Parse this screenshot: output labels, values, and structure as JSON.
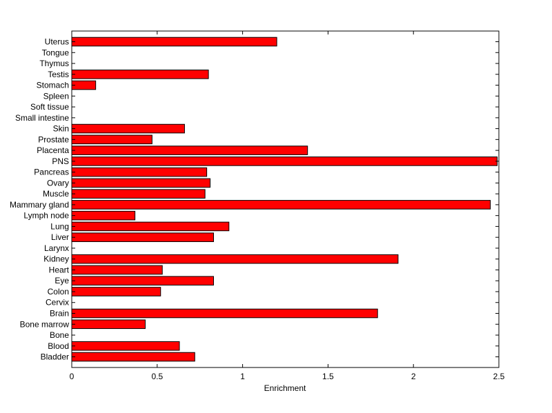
{
  "chart_data": {
    "type": "bar",
    "orientation": "horizontal",
    "title": "",
    "xlabel": "Enrichment",
    "ylabel": "",
    "xlim": [
      0,
      2.5
    ],
    "xticks": [
      0,
      0.5,
      1,
      1.5,
      2,
      2.5
    ],
    "xtick_labels": [
      "0",
      "0.5",
      "1",
      "1.5",
      "2",
      "2.5"
    ],
    "grid": false,
    "bar_color": "#ff0000",
    "edge_color": "#000000",
    "categories": [
      "Uterus",
      "Tongue",
      "Thymus",
      "Testis",
      "Stomach",
      "Spleen",
      "Soft tissue",
      "Small intestine",
      "Skin",
      "Prostate",
      "Placenta",
      "PNS",
      "Pancreas",
      "Ovary",
      "Muscle",
      "Mammary gland",
      "Lymph node",
      "Lung",
      "Liver",
      "Larynx",
      "Kidney",
      "Heart",
      "Eye",
      "Colon",
      "Cervix",
      "Brain",
      "Bone marrow",
      "Bone",
      "Blood",
      "Bladder"
    ],
    "values": [
      1.2,
      0,
      0,
      0.8,
      0.14,
      0,
      0,
      0,
      0.66,
      0.47,
      1.38,
      2.49,
      0.79,
      0.81,
      0.78,
      2.45,
      0.37,
      0.92,
      0.83,
      0,
      1.91,
      0.53,
      0.83,
      0.52,
      0,
      1.79,
      0.43,
      0,
      0.63,
      0.72
    ]
  }
}
